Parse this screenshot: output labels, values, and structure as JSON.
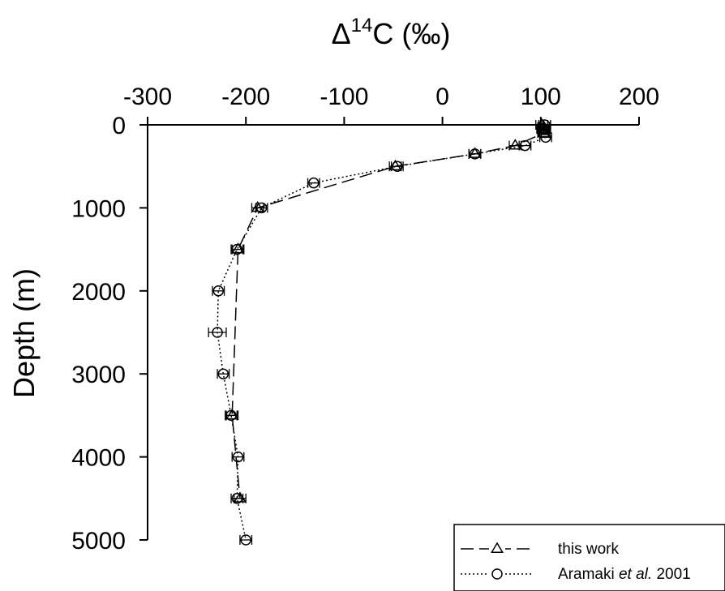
{
  "chart_data": {
    "type": "scatter",
    "title": "",
    "xlabel": {
      "base": "Δ",
      "superscript": "14",
      "rest": "C (‰)"
    },
    "ylabel": "Depth (m)",
    "xlim": [
      -300,
      200
    ],
    "ylim": [
      0,
      5000
    ],
    "y_inverted": true,
    "x_axis_position": "top",
    "x_ticks": [
      -300,
      -200,
      -100,
      0,
      100,
      200
    ],
    "x_tick_labels": [
      "-300",
      "-200",
      "-100",
      "0",
      "100",
      "200"
    ],
    "y_ticks": [
      0,
      1000,
      2000,
      3000,
      4000,
      5000
    ],
    "y_tick_labels": [
      "0",
      "1000",
      "2000",
      "3000",
      "4000",
      "5000"
    ],
    "grid": false,
    "legend_position": "bottom-right",
    "series": [
      {
        "name": "this work",
        "line_style": "dashed",
        "marker": "triangle",
        "color": "#000000",
        "points": [
          {
            "x": 101,
            "y": 0,
            "err": 6
          },
          {
            "x": 103,
            "y": 25,
            "err": 6
          },
          {
            "x": 102,
            "y": 50,
            "err": 6
          },
          {
            "x": 103,
            "y": 75,
            "err": 6
          },
          {
            "x": 103,
            "y": 100,
            "err": 6
          },
          {
            "x": 74,
            "y": 250,
            "err": 6
          },
          {
            "x": 33,
            "y": 350,
            "err": 6
          },
          {
            "x": -48,
            "y": 500,
            "err": 6
          },
          {
            "x": -188,
            "y": 1000,
            "err": 6
          },
          {
            "x": -208,
            "y": 1500,
            "err": 6
          },
          {
            "x": -214,
            "y": 3500,
            "err": 6
          },
          {
            "x": -206,
            "y": 4500,
            "err": 6
          }
        ]
      },
      {
        "name": "Aramaki et al. 2001",
        "name_parts": {
          "before": "Aramaki ",
          "italic": "et al.",
          "after": " 2001"
        },
        "line_style": "dotted",
        "marker": "circle",
        "color": "#000000",
        "points": [
          {
            "x": 104,
            "y": 0,
            "err": 6
          },
          {
            "x": 104,
            "y": 50,
            "err": 6
          },
          {
            "x": 105,
            "y": 150,
            "err": 6
          },
          {
            "x": 84,
            "y": 250,
            "err": 6
          },
          {
            "x": 33,
            "y": 350,
            "err": 6
          },
          {
            "x": -46,
            "y": 500,
            "err": 6
          },
          {
            "x": -131,
            "y": 700,
            "err": 6
          },
          {
            "x": -184,
            "y": 1000,
            "err": 6
          },
          {
            "x": -209,
            "y": 1500,
            "err": 6
          },
          {
            "x": -228,
            "y": 2000,
            "err": 6
          },
          {
            "x": -229,
            "y": 2500,
            "err": 9
          },
          {
            "x": -223,
            "y": 3000,
            "err": 6
          },
          {
            "x": -215,
            "y": 3500,
            "err": 6
          },
          {
            "x": -208,
            "y": 4000,
            "err": 6
          },
          {
            "x": -209,
            "y": 4500,
            "err": 6
          },
          {
            "x": -200,
            "y": 5000,
            "err": 6
          }
        ]
      }
    ]
  }
}
